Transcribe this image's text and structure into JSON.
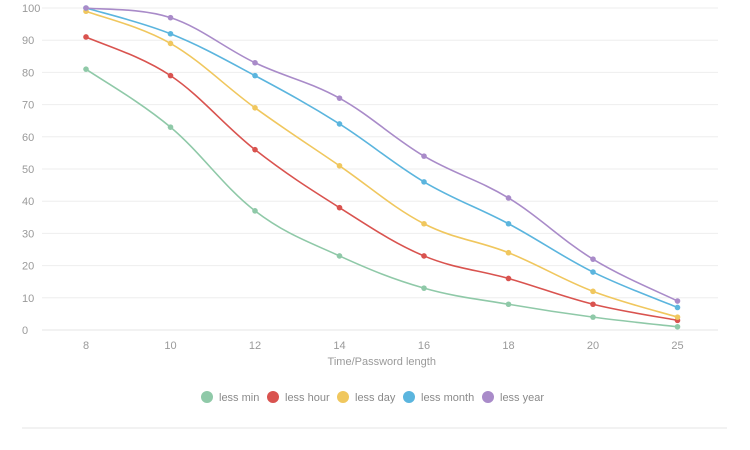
{
  "chart_data": {
    "type": "line",
    "categories": [
      "8",
      "10",
      "12",
      "14",
      "16",
      "18",
      "20",
      "25"
    ],
    "xlabel": "Time/Password length",
    "ylabel": "",
    "ylim": [
      0,
      100
    ],
    "yticks": [
      0,
      10,
      20,
      30,
      40,
      50,
      60,
      70,
      80,
      90,
      100
    ],
    "grid": true,
    "legend_position": "bottom",
    "series": [
      {
        "name": "less min",
        "color": "#8fc9a8",
        "values": [
          81,
          63,
          37,
          23,
          13,
          8,
          4,
          1
        ]
      },
      {
        "name": "less hour",
        "color": "#d9534f",
        "values": [
          91,
          79,
          56,
          38,
          23,
          16,
          8,
          3
        ]
      },
      {
        "name": "less day",
        "color": "#f0c75e",
        "values": [
          99,
          89,
          69,
          51,
          33,
          24,
          12,
          4
        ]
      },
      {
        "name": "less month",
        "color": "#5bb5de",
        "values": [
          100,
          92,
          79,
          64,
          46,
          33,
          18,
          7
        ]
      },
      {
        "name": "less year",
        "color": "#a98bc9",
        "values": [
          100,
          97,
          83,
          72,
          54,
          41,
          22,
          9
        ]
      }
    ]
  }
}
